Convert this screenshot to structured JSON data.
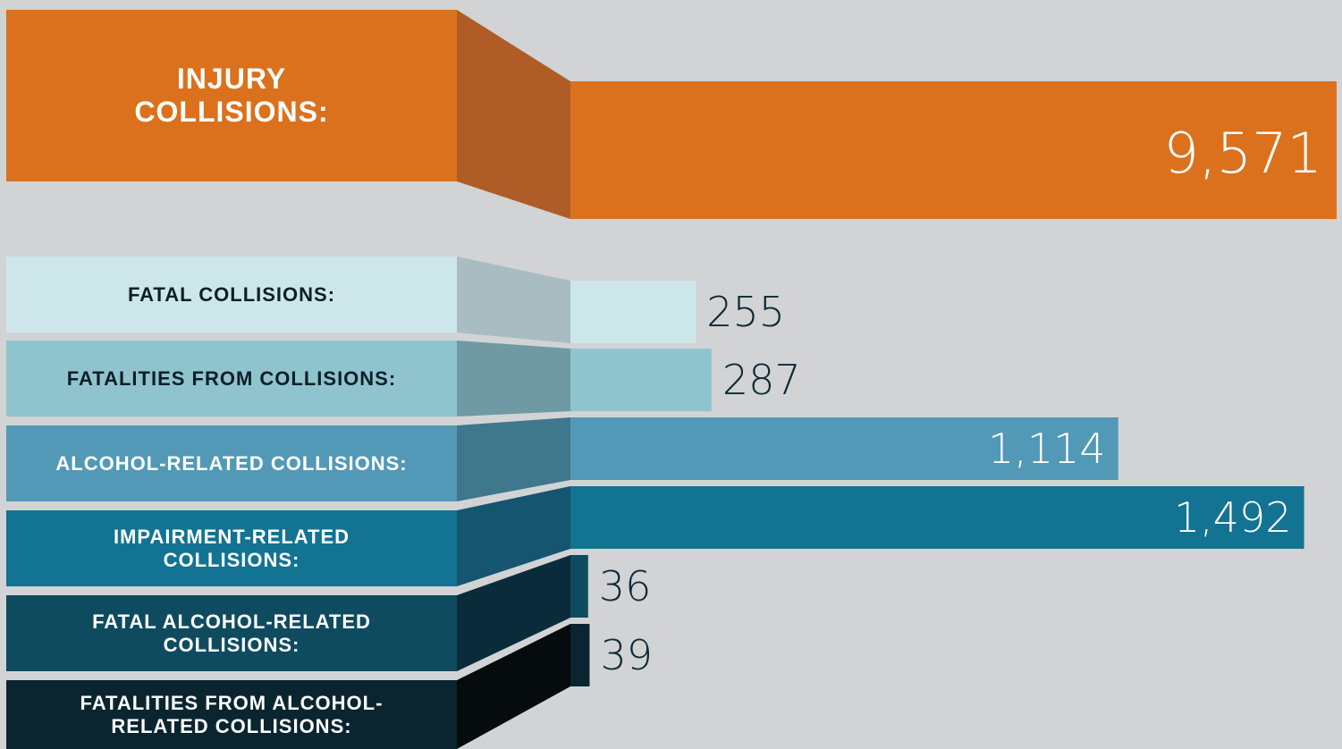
{
  "chart_data": {
    "type": "bar",
    "headline": {
      "label": "INJURY COLLISIONS:",
      "value": 9571,
      "value_label": "9,571",
      "color": "#db711d",
      "side_color": "#b05c26"
    },
    "categories": [
      "FATAL COLLISIONS:",
      "FATALITIES FROM COLLISIONS:",
      "ALCOHOL-RELATED COLLISIONS:",
      "IMPAIRMENT-RELATED COLLISIONS:",
      "FATAL ALCOHOL-RELATED COLLISIONS:",
      "FATALITIES FROM ALCOHOL-RELATED COLLISIONS:"
    ],
    "values": [
      255,
      287,
      1114,
      1492,
      36,
      39
    ],
    "value_labels": [
      "255",
      "287",
      "1,114",
      "1,492",
      "36",
      "39"
    ],
    "colors": [
      "#cde6ea",
      "#8fc4cf",
      "#5299b7",
      "#127393",
      "#0f4b5f",
      "#0a2530"
    ],
    "side_colors": [
      "#a8bcc1",
      "#6f9aa3",
      "#3f778c",
      "#155570",
      "#0a2c3a",
      "#060b0e"
    ]
  }
}
